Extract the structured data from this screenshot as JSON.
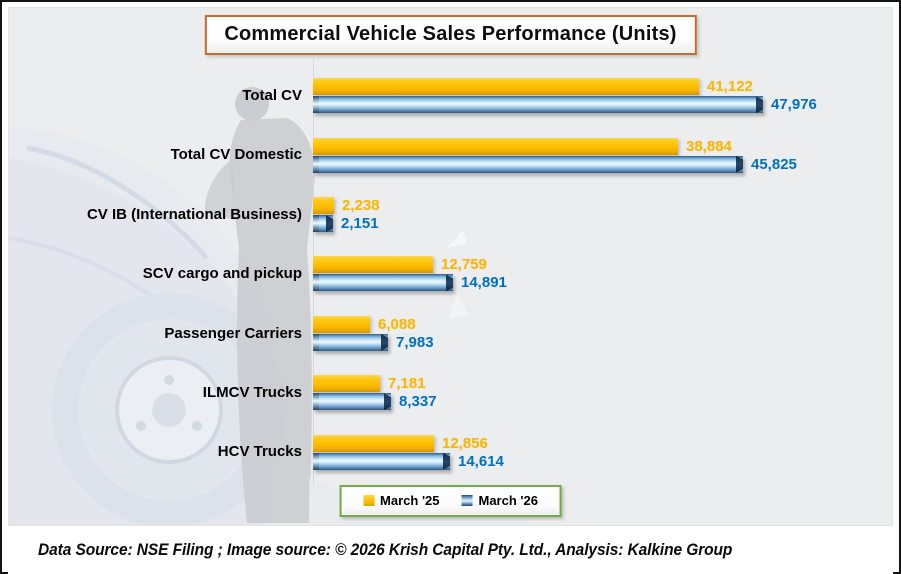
{
  "title": "Commercial Vehicle  Sales Performance (Units)",
  "chart_data": {
    "type": "bar",
    "orientation": "horizontal",
    "title": "Commercial Vehicle  Sales Performance (Units)",
    "categories": [
      "Total CV",
      "Total CV Domestic",
      "CV IB (International Business)",
      "SCV cargo and pickup",
      "Passenger Carriers",
      "ILMCV Trucks",
      "HCV Trucks"
    ],
    "series": [
      {
        "name": "March '25",
        "color": "#FFC000",
        "values": [
          41122,
          38884,
          2238,
          12759,
          6088,
          7181,
          12856
        ],
        "labels": [
          "41,122",
          "38,884",
          "2,238",
          "12,759",
          "6,088",
          "7,181",
          "12,856"
        ]
      },
      {
        "name": "March '26",
        "color": "#4E81B8",
        "values": [
          47976,
          45825,
          2151,
          14891,
          7983,
          8337,
          14614
        ],
        "labels": [
          "47,976",
          "45,825",
          "2,151",
          "14,891",
          "7,983",
          "8,337",
          "14,614"
        ]
      }
    ],
    "value_label_colors": {
      "march25": "#FBB800",
      "march26": "#0070C0"
    },
    "xlim": [
      0,
      48000
    ],
    "grid": false,
    "x_axis_visible": false,
    "legend_position": "bottom-center"
  },
  "legend": {
    "items": [
      {
        "label": "March '25",
        "color": "#FFC000"
      },
      {
        "label": "March '26",
        "color": "#4E81B8"
      }
    ],
    "border_color": "#70AD47"
  },
  "footer": {
    "text": "Data Source: NSE Filing ; Image source: © 2026 Krish Capital Pty. Ltd., Analysis: Kalkine Group"
  },
  "style_colors": {
    "title_border": "#C96A28",
    "panel_background": "#ECEDEE",
    "outer_border": "#141414"
  }
}
